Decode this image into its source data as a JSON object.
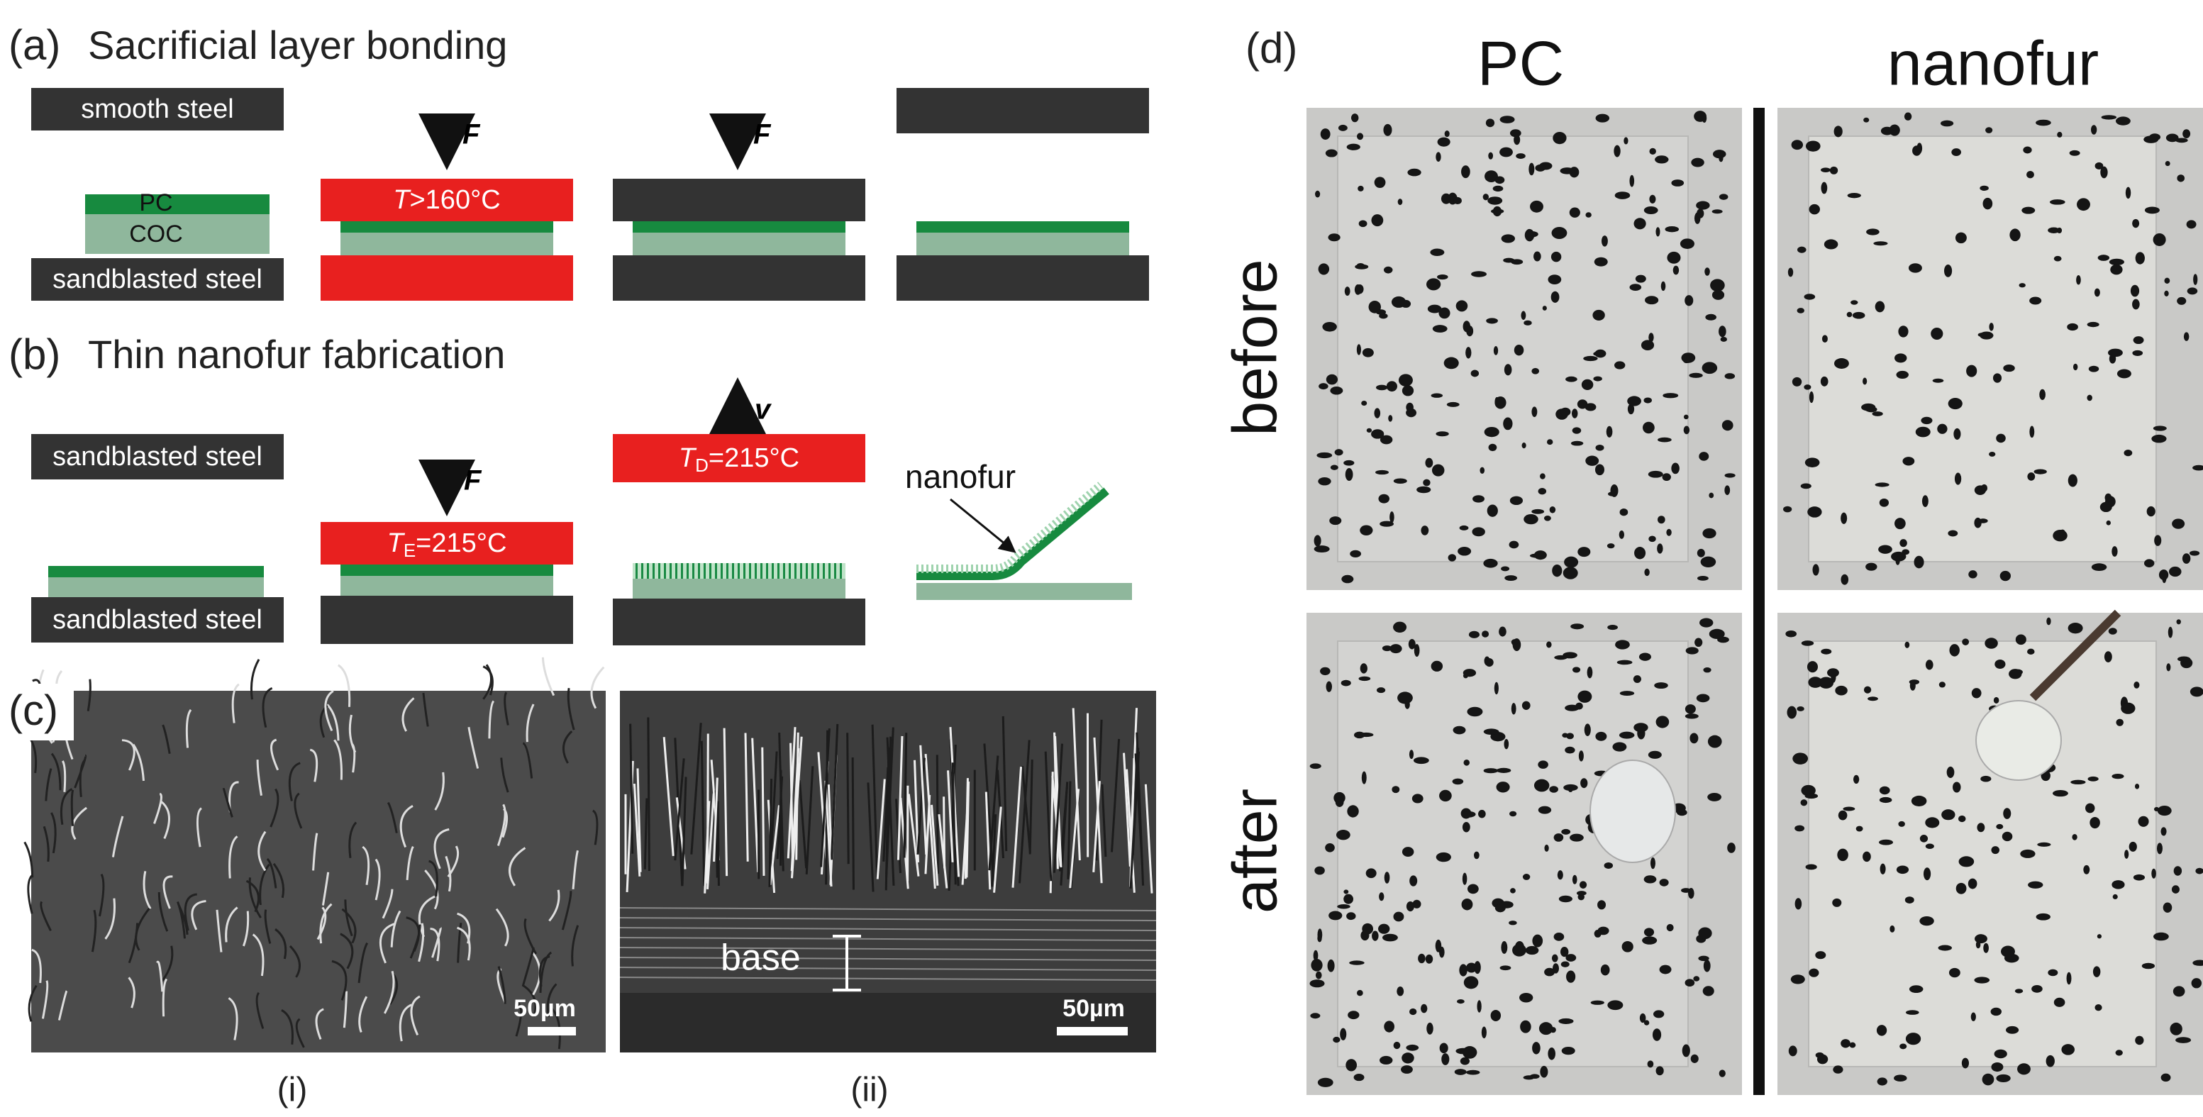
{
  "panel_a": {
    "label": "(a)",
    "title": "Sacrificial layer bonding",
    "smooth_steel": "smooth steel",
    "pc": "PC",
    "coc": "COC",
    "sandblasted_steel": "sandblasted steel",
    "force_1": "F",
    "temp": {
      "symbol": "T",
      "rest": ">160°C"
    },
    "force_2": "F"
  },
  "panel_b": {
    "label": "(b)",
    "title": "Thin nanofur fabrication",
    "sandblasted_steel_top": "sandblasted steel",
    "sandblasted_steel_bottom": "sandblasted steel",
    "force": "F",
    "temp_emboss": {
      "symbol": "T",
      "subscript": "E",
      "rest": "=215°C"
    },
    "velocity": "v",
    "temp_demold": {
      "symbol": "T",
      "subscript": "D",
      "rest": "=215°C"
    },
    "nanofur": "nanofur"
  },
  "panel_c": {
    "label": "(c)",
    "base": "base",
    "scale_i": "50µm",
    "scale_ii": "50µm",
    "sub_i": "(i)",
    "sub_ii": "(ii)"
  },
  "panel_d": {
    "label": "(d)",
    "columns": [
      "PC",
      "nanofur"
    ],
    "rows": [
      "before",
      "after"
    ]
  }
}
